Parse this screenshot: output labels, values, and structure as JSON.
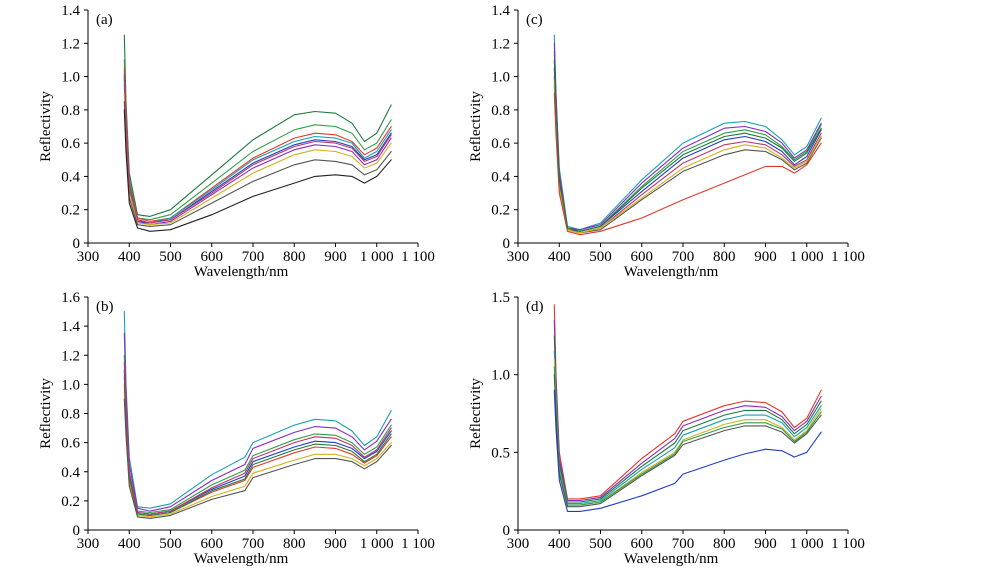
{
  "chart_data": [
    {
      "type": "line",
      "panel_label": "(a)",
      "xlabel": "Wavelength/nm",
      "ylabel": "Reflectivity",
      "xlim": [
        300,
        1100
      ],
      "ylim": [
        0,
        1.4
      ],
      "x_ticks": [
        300,
        400,
        500,
        600,
        700,
        800,
        900,
        1000,
        1100
      ],
      "x_tick_labels": [
        "300",
        "400",
        "500",
        "600",
        "700",
        "800",
        "900",
        "1 000",
        "1 100"
      ],
      "y_ticks": [
        0,
        0.2,
        0.4,
        0.6,
        0.8,
        1.0,
        1.2,
        1.4
      ],
      "y_tick_labels": [
        "0",
        "0.2",
        "0.4",
        "0.6",
        "0.8",
        "1.0",
        "1.2",
        "1.4"
      ],
      "grid": false,
      "x": [
        388,
        392,
        400,
        420,
        450,
        500,
        600,
        700,
        800,
        850,
        900,
        940,
        970,
        1000,
        1035
      ],
      "series": [
        {
          "color": "#1e7a3c",
          "values": [
            1.25,
            0.85,
            0.42,
            0.17,
            0.16,
            0.2,
            0.41,
            0.62,
            0.77,
            0.79,
            0.78,
            0.72,
            0.61,
            0.66,
            0.83
          ]
        },
        {
          "color": "#2f9e4a",
          "values": [
            1.1,
            0.8,
            0.38,
            0.15,
            0.14,
            0.17,
            0.36,
            0.55,
            0.68,
            0.71,
            0.7,
            0.66,
            0.56,
            0.6,
            0.74
          ]
        },
        {
          "color": "#e03a2b",
          "values": [
            1.05,
            0.78,
            0.36,
            0.15,
            0.13,
            0.15,
            0.33,
            0.51,
            0.63,
            0.66,
            0.65,
            0.61,
            0.53,
            0.57,
            0.7
          ]
        },
        {
          "color": "#1f3fbf",
          "values": [
            1.0,
            0.72,
            0.33,
            0.13,
            0.12,
            0.14,
            0.31,
            0.48,
            0.59,
            0.62,
            0.61,
            0.58,
            0.5,
            0.53,
            0.66
          ]
        },
        {
          "color": "#8a2ac0",
          "values": [
            0.95,
            0.7,
            0.31,
            0.13,
            0.11,
            0.13,
            0.29,
            0.45,
            0.56,
            0.59,
            0.58,
            0.55,
            0.47,
            0.5,
            0.63
          ]
        },
        {
          "color": "#17a0b0",
          "values": [
            0.98,
            0.74,
            0.34,
            0.14,
            0.12,
            0.15,
            0.32,
            0.5,
            0.61,
            0.64,
            0.63,
            0.6,
            0.51,
            0.55,
            0.68
          ]
        },
        {
          "color": "#d1b21a",
          "values": [
            0.9,
            0.66,
            0.3,
            0.12,
            0.11,
            0.12,
            0.27,
            0.42,
            0.53,
            0.56,
            0.55,
            0.52,
            0.45,
            0.48,
            0.6
          ]
        },
        {
          "color": "#555555",
          "values": [
            0.85,
            0.6,
            0.27,
            0.11,
            0.1,
            0.11,
            0.24,
            0.37,
            0.47,
            0.5,
            0.49,
            0.47,
            0.41,
            0.44,
            0.55
          ]
        },
        {
          "color": "#222222",
          "values": [
            0.8,
            0.55,
            0.24,
            0.09,
            0.07,
            0.08,
            0.17,
            0.28,
            0.36,
            0.4,
            0.41,
            0.4,
            0.36,
            0.4,
            0.5
          ]
        },
        {
          "color": "#c0336b",
          "values": [
            1.02,
            0.76,
            0.35,
            0.14,
            0.12,
            0.14,
            0.3,
            0.47,
            0.58,
            0.61,
            0.6,
            0.57,
            0.49,
            0.52,
            0.65
          ]
        }
      ]
    },
    {
      "type": "line",
      "panel_label": "(c)",
      "xlabel": "Wavelength/nm",
      "ylabel": "Reflectivity",
      "xlim": [
        300,
        1100
      ],
      "ylim": [
        0,
        1.4
      ],
      "x_ticks": [
        300,
        400,
        500,
        600,
        700,
        800,
        900,
        1000,
        1100
      ],
      "x_tick_labels": [
        "300",
        "400",
        "500",
        "600",
        "700",
        "800",
        "900",
        "1 000",
        "1 100"
      ],
      "y_ticks": [
        0,
        0.2,
        0.4,
        0.6,
        0.8,
        1.0,
        1.2,
        1.4
      ],
      "y_tick_labels": [
        "0",
        "0.2",
        "0.4",
        "0.6",
        "0.8",
        "1.0",
        "1.2",
        "1.4"
      ],
      "grid": false,
      "x": [
        388,
        392,
        400,
        420,
        450,
        500,
        600,
        700,
        800,
        850,
        900,
        940,
        970,
        1000,
        1035
      ],
      "series": [
        {
          "color": "#17a0b0",
          "values": [
            1.25,
            0.9,
            0.45,
            0.1,
            0.08,
            0.12,
            0.38,
            0.6,
            0.72,
            0.73,
            0.7,
            0.62,
            0.53,
            0.58,
            0.75
          ]
        },
        {
          "color": "#2f9e4a",
          "values": [
            1.15,
            0.85,
            0.4,
            0.09,
            0.07,
            0.1,
            0.34,
            0.55,
            0.66,
            0.68,
            0.65,
            0.58,
            0.5,
            0.55,
            0.71
          ]
        },
        {
          "color": "#8a2ac0",
          "values": [
            1.2,
            0.88,
            0.42,
            0.09,
            0.08,
            0.11,
            0.36,
            0.57,
            0.69,
            0.7,
            0.67,
            0.6,
            0.51,
            0.56,
            0.72
          ]
        },
        {
          "color": "#1f3fbf",
          "values": [
            1.05,
            0.78,
            0.36,
            0.08,
            0.07,
            0.1,
            0.31,
            0.51,
            0.62,
            0.64,
            0.61,
            0.55,
            0.47,
            0.52,
            0.68
          ]
        },
        {
          "color": "#c0336b",
          "values": [
            1.0,
            0.74,
            0.34,
            0.08,
            0.06,
            0.09,
            0.29,
            0.48,
            0.59,
            0.61,
            0.59,
            0.53,
            0.46,
            0.5,
            0.66
          ]
        },
        {
          "color": "#555555",
          "values": [
            0.95,
            0.7,
            0.32,
            0.08,
            0.06,
            0.08,
            0.26,
            0.43,
            0.53,
            0.56,
            0.55,
            0.5,
            0.44,
            0.48,
            0.63
          ]
        },
        {
          "color": "#d1b21a",
          "values": [
            0.98,
            0.72,
            0.33,
            0.08,
            0.06,
            0.09,
            0.27,
            0.45,
            0.56,
            0.59,
            0.57,
            0.51,
            0.45,
            0.49,
            0.64
          ]
        },
        {
          "color": "#e03a2b",
          "values": [
            0.9,
            0.65,
            0.3,
            0.07,
            0.05,
            0.07,
            0.15,
            0.26,
            0.36,
            0.41,
            0.46,
            0.46,
            0.42,
            0.47,
            0.6
          ]
        },
        {
          "color": "#1e7a3c",
          "values": [
            1.1,
            0.8,
            0.38,
            0.09,
            0.07,
            0.1,
            0.33,
            0.53,
            0.64,
            0.66,
            0.63,
            0.57,
            0.49,
            0.54,
            0.69
          ]
        }
      ]
    },
    {
      "type": "line",
      "panel_label": "(b)",
      "xlabel": "Wavelength/nm",
      "ylabel": "Reflectivity",
      "xlim": [
        300,
        1100
      ],
      "ylim": [
        0,
        1.6
      ],
      "x_ticks": [
        300,
        400,
        500,
        600,
        700,
        800,
        900,
        1000,
        1100
      ],
      "x_tick_labels": [
        "300",
        "400",
        "500",
        "600",
        "700",
        "800",
        "900",
        "1 000",
        "1 100"
      ],
      "y_ticks": [
        0,
        0.2,
        0.4,
        0.6,
        0.8,
        1.0,
        1.2,
        1.4,
        1.6
      ],
      "y_tick_labels": [
        "0",
        "0.2",
        "0.4",
        "0.6",
        "0.8",
        "1.0",
        "1.2",
        "1.4",
        "1.6"
      ],
      "grid": false,
      "x": [
        388,
        392,
        400,
        420,
        450,
        500,
        600,
        680,
        700,
        800,
        850,
        900,
        940,
        970,
        1000,
        1035
      ],
      "series": [
        {
          "color": "#17a0b0",
          "values": [
            1.5,
            1.0,
            0.5,
            0.16,
            0.15,
            0.18,
            0.38,
            0.5,
            0.6,
            0.72,
            0.76,
            0.75,
            0.68,
            0.58,
            0.64,
            0.82
          ]
        },
        {
          "color": "#8a2ac0",
          "values": [
            1.35,
            0.95,
            0.45,
            0.15,
            0.13,
            0.16,
            0.34,
            0.45,
            0.56,
            0.67,
            0.71,
            0.7,
            0.64,
            0.55,
            0.61,
            0.76
          ]
        },
        {
          "color": "#2f9e4a",
          "values": [
            1.2,
            0.85,
            0.4,
            0.13,
            0.12,
            0.14,
            0.31,
            0.41,
            0.51,
            0.62,
            0.66,
            0.65,
            0.6,
            0.52,
            0.57,
            0.72
          ]
        },
        {
          "color": "#1f3fbf",
          "values": [
            1.1,
            0.8,
            0.38,
            0.12,
            0.11,
            0.13,
            0.28,
            0.37,
            0.47,
            0.57,
            0.61,
            0.6,
            0.56,
            0.49,
            0.54,
            0.68
          ]
        },
        {
          "color": "#e03a2b",
          "values": [
            1.0,
            0.72,
            0.35,
            0.11,
            0.1,
            0.12,
            0.26,
            0.34,
            0.43,
            0.53,
            0.57,
            0.56,
            0.52,
            0.46,
            0.51,
            0.64
          ]
        },
        {
          "color": "#d1b21a",
          "values": [
            0.95,
            0.68,
            0.32,
            0.1,
            0.09,
            0.11,
            0.23,
            0.3,
            0.39,
            0.48,
            0.52,
            0.52,
            0.49,
            0.44,
            0.49,
            0.6
          ]
        },
        {
          "color": "#555555",
          "values": [
            0.9,
            0.65,
            0.3,
            0.09,
            0.08,
            0.1,
            0.21,
            0.27,
            0.36,
            0.45,
            0.49,
            0.49,
            0.47,
            0.42,
            0.47,
            0.58
          ]
        },
        {
          "color": "#1e7a3c",
          "values": [
            1.05,
            0.75,
            0.36,
            0.11,
            0.1,
            0.12,
            0.27,
            0.35,
            0.45,
            0.55,
            0.59,
            0.58,
            0.54,
            0.47,
            0.52,
            0.66
          ]
        },
        {
          "color": "#c0336b",
          "values": [
            1.15,
            0.82,
            0.39,
            0.12,
            0.11,
            0.13,
            0.29,
            0.39,
            0.49,
            0.6,
            0.64,
            0.63,
            0.58,
            0.5,
            0.55,
            0.7
          ]
        }
      ]
    },
    {
      "type": "line",
      "panel_label": "(d)",
      "xlabel": "Wavelength/nm",
      "ylabel": "Reflectivity",
      "xlim": [
        300,
        1100
      ],
      "ylim": [
        0,
        1.5
      ],
      "x_ticks": [
        300,
        400,
        500,
        600,
        700,
        800,
        900,
        1000,
        1100
      ],
      "x_tick_labels": [
        "300",
        "400",
        "500",
        "600",
        "700",
        "800",
        "900",
        "1 000",
        "1 100"
      ],
      "y_ticks": [
        0,
        0.5,
        1.0,
        1.5
      ],
      "y_tick_labels": [
        "0",
        "0.5",
        "1.0",
        "1.5"
      ],
      "grid": false,
      "x": [
        388,
        392,
        400,
        420,
        450,
        500,
        600,
        680,
        700,
        800,
        850,
        900,
        940,
        970,
        1000,
        1035
      ],
      "series": [
        {
          "color": "#e03a2b",
          "values": [
            1.45,
            1.0,
            0.5,
            0.2,
            0.2,
            0.22,
            0.46,
            0.62,
            0.7,
            0.8,
            0.83,
            0.82,
            0.76,
            0.66,
            0.72,
            0.9
          ]
        },
        {
          "color": "#8a2ac0",
          "values": [
            1.35,
            0.95,
            0.46,
            0.19,
            0.19,
            0.21,
            0.43,
            0.59,
            0.67,
            0.77,
            0.8,
            0.79,
            0.73,
            0.64,
            0.7,
            0.86
          ]
        },
        {
          "color": "#1e7a3c",
          "values": [
            1.25,
            0.9,
            0.43,
            0.18,
            0.18,
            0.2,
            0.41,
            0.56,
            0.64,
            0.74,
            0.77,
            0.77,
            0.71,
            0.62,
            0.68,
            0.83
          ]
        },
        {
          "color": "#17a0b0",
          "values": [
            1.15,
            0.85,
            0.4,
            0.17,
            0.17,
            0.19,
            0.39,
            0.53,
            0.61,
            0.71,
            0.74,
            0.74,
            0.69,
            0.6,
            0.66,
            0.8
          ]
        },
        {
          "color": "#d1b21a",
          "values": [
            1.1,
            0.8,
            0.38,
            0.16,
            0.16,
            0.18,
            0.37,
            0.5,
            0.58,
            0.68,
            0.71,
            0.71,
            0.66,
            0.58,
            0.64,
            0.78
          ]
        },
        {
          "color": "#2f9e4a",
          "values": [
            1.05,
            0.78,
            0.37,
            0.16,
            0.16,
            0.18,
            0.36,
            0.49,
            0.57,
            0.66,
            0.69,
            0.69,
            0.65,
            0.57,
            0.63,
            0.76
          ]
        },
        {
          "color": "#555555",
          "values": [
            1.0,
            0.75,
            0.36,
            0.15,
            0.15,
            0.17,
            0.35,
            0.48,
            0.55,
            0.64,
            0.67,
            0.67,
            0.63,
            0.56,
            0.62,
            0.74
          ]
        },
        {
          "color": "#1f3fbf",
          "values": [
            0.9,
            0.65,
            0.32,
            0.12,
            0.12,
            0.14,
            0.22,
            0.3,
            0.36,
            0.45,
            0.49,
            0.52,
            0.51,
            0.47,
            0.5,
            0.63
          ]
        }
      ]
    }
  ]
}
